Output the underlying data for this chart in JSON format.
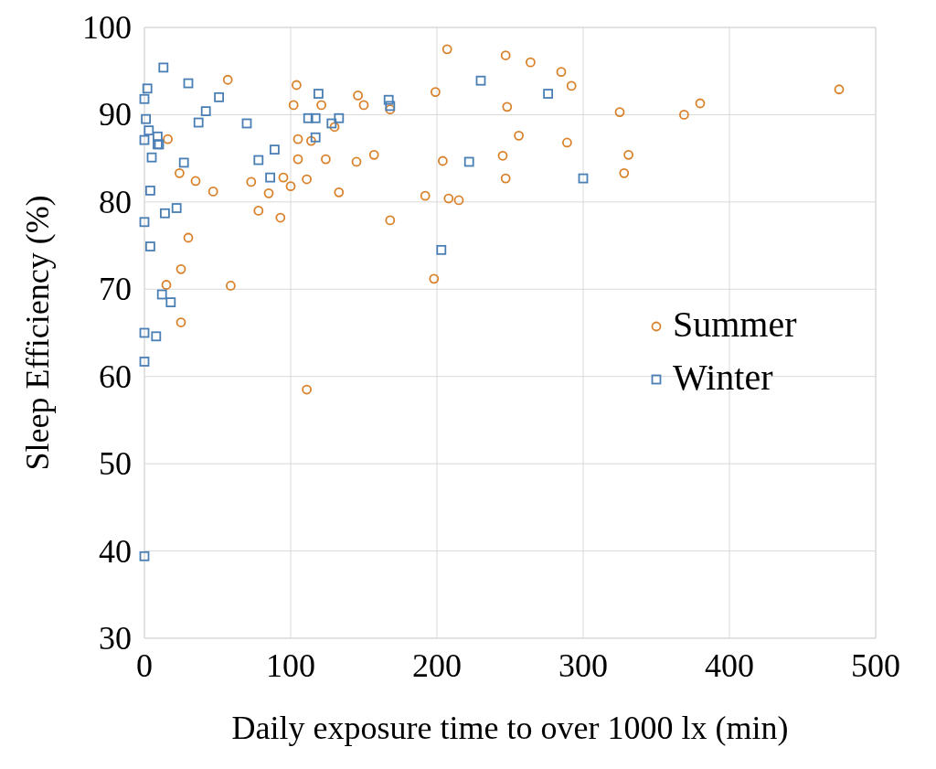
{
  "chart_data": {
    "type": "scatter",
    "xlabel": "Daily exposure time to over 1000 lx (min)",
    "ylabel": "Sleep Efficiency (%)",
    "xlim": [
      0,
      500
    ],
    "ylim": [
      30,
      100
    ],
    "xticks": [
      0,
      100,
      200,
      300,
      400,
      500
    ],
    "yticks": [
      30,
      40,
      50,
      60,
      70,
      80,
      90,
      100
    ],
    "grid": true,
    "legend": "right",
    "series": [
      {
        "name": "Summer",
        "color": "#d9822b",
        "marker": "circle",
        "x": [
          57,
          16,
          24,
          35,
          47,
          73,
          30,
          25,
          15,
          59,
          25,
          104,
          102,
          121,
          130,
          105,
          114,
          105,
          124,
          145,
          157,
          95,
          100,
          111,
          85,
          133,
          78,
          93,
          146,
          150,
          207,
          247,
          264,
          285,
          292,
          199,
          248,
          325,
          369,
          380,
          475,
          256,
          289,
          204,
          245,
          331,
          247,
          328,
          192,
          208,
          215,
          198,
          168,
          168,
          111
        ],
        "values": [
          94.0,
          87.2,
          83.3,
          82.4,
          81.2,
          82.3,
          75.9,
          72.3,
          70.5,
          70.4,
          66.2,
          93.4,
          91.1,
          91.1,
          88.6,
          87.2,
          87.0,
          84.9,
          84.9,
          84.6,
          85.4,
          82.8,
          81.8,
          82.6,
          81.0,
          81.1,
          79.0,
          78.2,
          92.2,
          91.1,
          97.5,
          96.8,
          96.0,
          94.9,
          93.3,
          92.6,
          90.9,
          90.3,
          90.0,
          91.3,
          92.9,
          87.6,
          86.8,
          84.7,
          85.3,
          85.4,
          82.7,
          83.3,
          80.7,
          80.4,
          80.2,
          71.2,
          90.6,
          77.9,
          58.5
        ]
      },
      {
        "name": "Winter",
        "color": "#4a7fb5",
        "marker": "square",
        "x": [
          13,
          2,
          0,
          1,
          3,
          9,
          0,
          9,
          10,
          5,
          4,
          0,
          4,
          12,
          18,
          0,
          8,
          0,
          0,
          30,
          51,
          42,
          37,
          27,
          14,
          22,
          70,
          89,
          78,
          86,
          119,
          112,
          117,
          133,
          128,
          117,
          167,
          168,
          230,
          276,
          222,
          203,
          300
        ],
        "values": [
          95.4,
          93.0,
          91.8,
          89.5,
          88.2,
          87.5,
          87.1,
          86.6,
          86.6,
          85.1,
          81.3,
          77.7,
          74.9,
          69.4,
          68.5,
          65.0,
          64.6,
          61.7,
          39.4,
          93.6,
          92.0,
          90.4,
          89.1,
          84.5,
          78.7,
          79.3,
          89.0,
          86.0,
          84.8,
          82.8,
          92.4,
          89.6,
          89.6,
          89.6,
          89.0,
          87.4,
          91.7,
          91.0,
          93.9,
          92.4,
          84.6,
          74.5,
          82.7
        ]
      }
    ]
  }
}
